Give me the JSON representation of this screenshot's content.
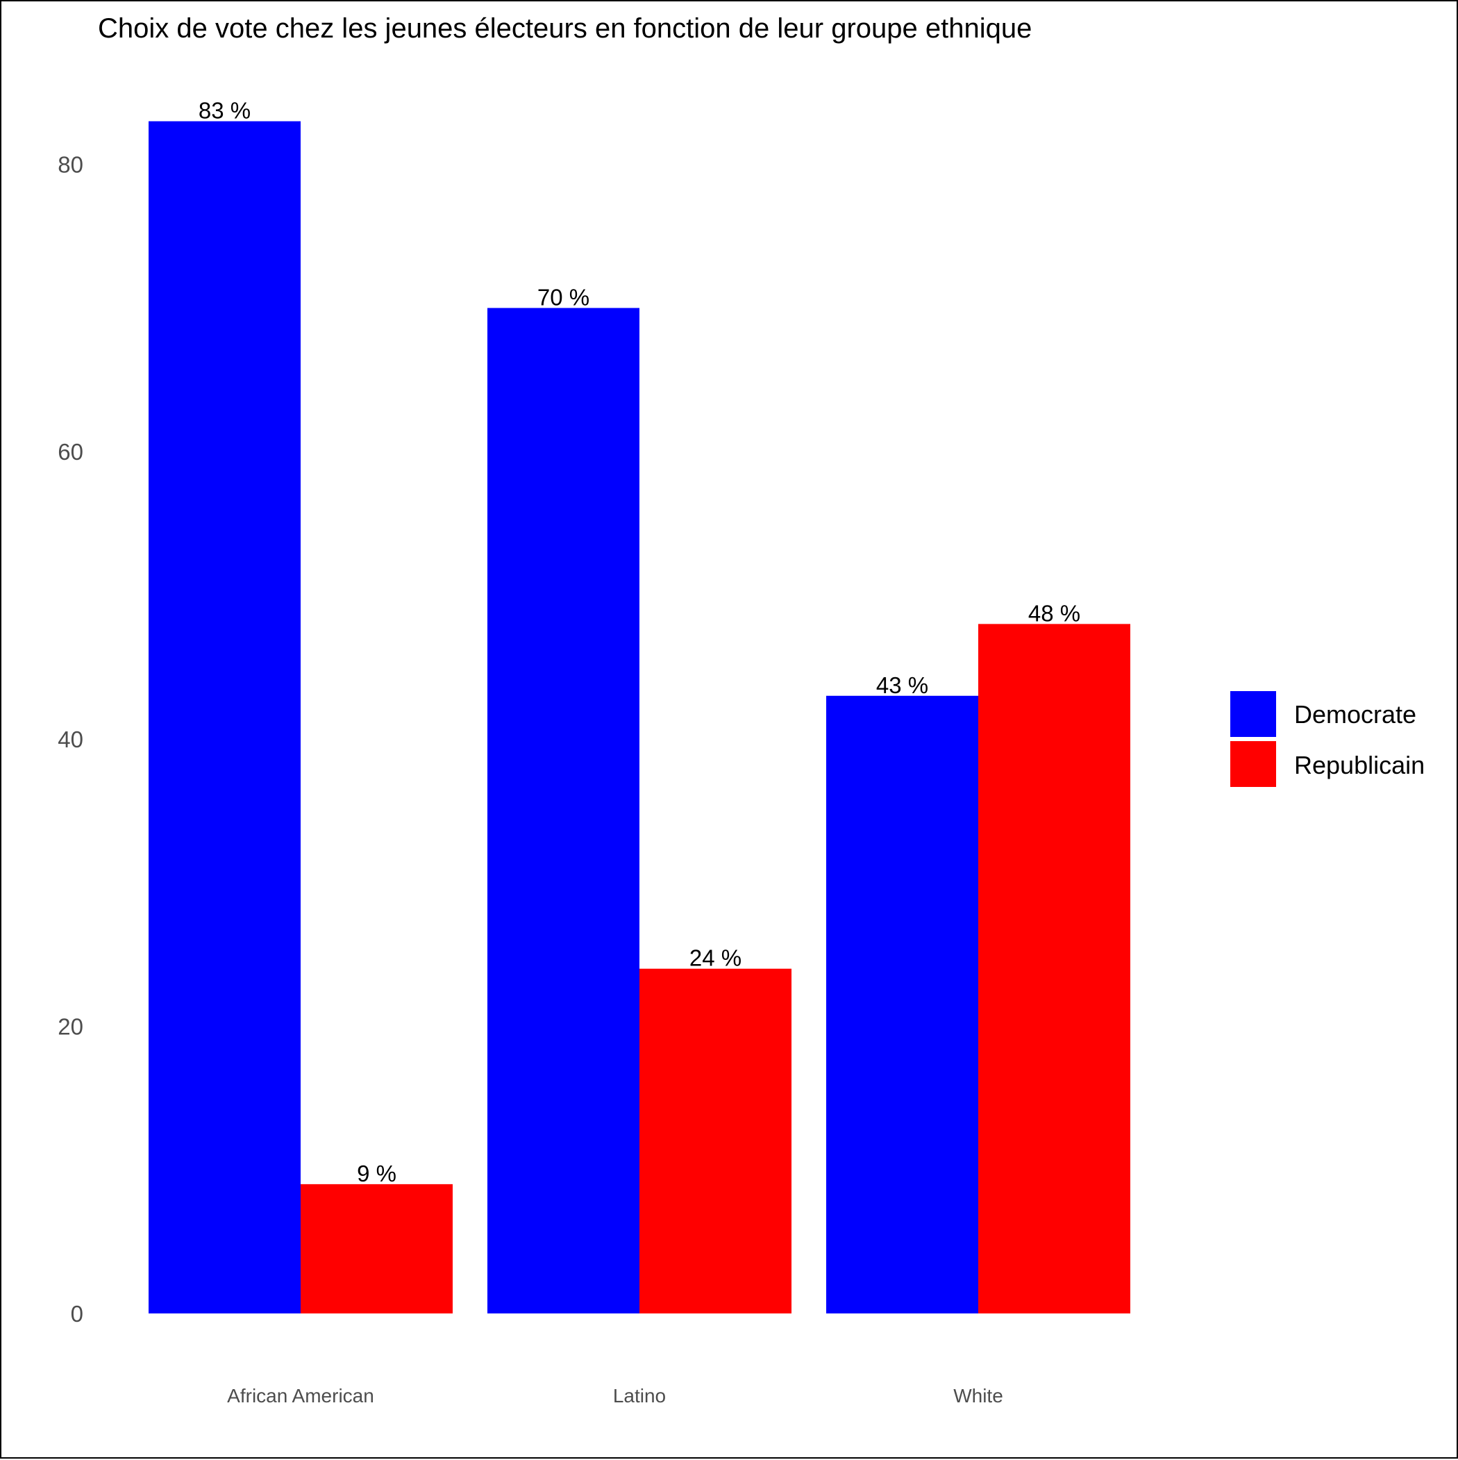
{
  "chart_data": {
    "type": "bar",
    "title": "Choix de vote chez les jeunes électeurs en fonction de leur groupe ethnique",
    "xlabel": "",
    "ylabel": "",
    "categories": [
      "African American",
      "Latino",
      "White"
    ],
    "series": [
      {
        "name": "Democrate",
        "values": [
          83,
          70,
          43
        ],
        "labels": [
          "83 %",
          "70 %",
          "43 %"
        ],
        "color": "#0000FF"
      },
      {
        "name": "Republicain",
        "values": [
          9,
          24,
          48
        ],
        "labels": [
          "9 %",
          "24 %",
          "48 %"
        ],
        "color": "#FF0000"
      }
    ],
    "ylim": [
      0,
      87
    ],
    "yticks": [
      0,
      20,
      40,
      60,
      80
    ],
    "grid": false,
    "legend_position": "right"
  }
}
